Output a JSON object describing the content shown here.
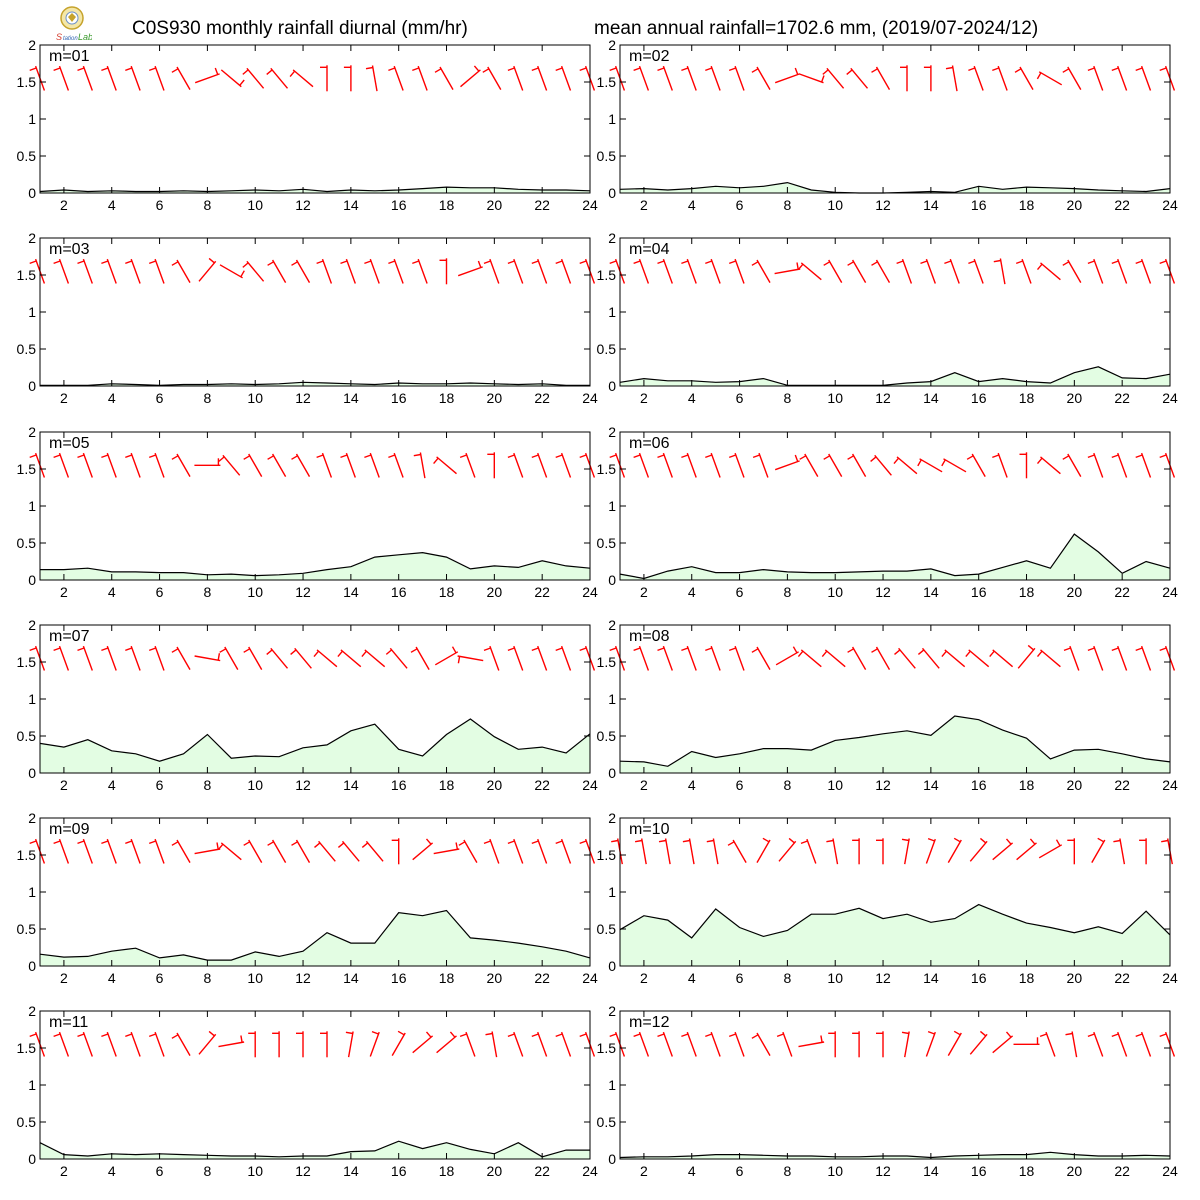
{
  "header": {
    "title_left": "C0S930 monthly rainfall diurnal (mm/hr)",
    "title_right": "mean annual rainfall=1702.6 mm, (2019/07-2024/12)",
    "logo_text": "Lab"
  },
  "colors": {
    "fill": "#e3fde3",
    "line": "#000000",
    "wind": "#ff0000"
  },
  "chart_data": [
    {
      "type": "area",
      "label": "m=01",
      "x": [
        1,
        2,
        3,
        4,
        5,
        6,
        7,
        8,
        9,
        10,
        11,
        12,
        13,
        14,
        15,
        16,
        17,
        18,
        19,
        20,
        21,
        22,
        23,
        24
      ],
      "values": [
        0.02,
        0.04,
        0.02,
        0.03,
        0.02,
        0.02,
        0.03,
        0.02,
        0.03,
        0.04,
        0.03,
        0.05,
        0.02,
        0.04,
        0.03,
        0.04,
        0.06,
        0.08,
        0.07,
        0.07,
        0.05,
        0.04,
        0.04,
        0.03
      ],
      "wind_dir": [
        290,
        290,
        290,
        290,
        290,
        290,
        300,
        200,
        140,
        310,
        310,
        320,
        270,
        270,
        280,
        290,
        290,
        300,
        220,
        300,
        290,
        290,
        290,
        290
      ],
      "ylim": [
        0,
        2
      ],
      "xticks": [
        2,
        4,
        6,
        8,
        10,
        12,
        14,
        16,
        18,
        20,
        22,
        24
      ],
      "yticks": [
        0,
        0.5,
        1,
        1.5,
        2
      ]
    },
    {
      "type": "area",
      "label": "m=02",
      "x": [
        1,
        2,
        3,
        4,
        5,
        6,
        7,
        8,
        9,
        10,
        11,
        12,
        13,
        14,
        15,
        16,
        17,
        18,
        19,
        20,
        21,
        22,
        23,
        24
      ],
      "values": [
        0.05,
        0.06,
        0.04,
        0.06,
        0.09,
        0.07,
        0.09,
        0.14,
        0.04,
        0.01,
        0.0,
        0.0,
        0.01,
        0.02,
        0.01,
        0.09,
        0.05,
        0.08,
        0.07,
        0.06,
        0.04,
        0.03,
        0.02,
        0.06
      ],
      "wind_dir": [
        290,
        290,
        290,
        290,
        290,
        290,
        300,
        200,
        160,
        310,
        310,
        300,
        270,
        270,
        280,
        290,
        290,
        300,
        330,
        300,
        290,
        290,
        290,
        290
      ],
      "ylim": [
        0,
        2
      ],
      "xticks": [
        2,
        4,
        6,
        8,
        10,
        12,
        14,
        16,
        18,
        20,
        22,
        24
      ],
      "yticks": [
        0,
        0.5,
        1,
        1.5,
        2
      ]
    },
    {
      "type": "area",
      "label": "m=03",
      "x": [
        1,
        2,
        3,
        4,
        5,
        6,
        7,
        8,
        9,
        10,
        11,
        12,
        13,
        14,
        15,
        16,
        17,
        18,
        19,
        20,
        21,
        22,
        23,
        24
      ],
      "values": [
        0.01,
        0.01,
        0.01,
        0.03,
        0.02,
        0.01,
        0.02,
        0.02,
        0.03,
        0.02,
        0.03,
        0.05,
        0.04,
        0.03,
        0.02,
        0.04,
        0.03,
        0.03,
        0.04,
        0.03,
        0.02,
        0.03,
        0.01,
        0.01
      ],
      "wind_dir": [
        290,
        290,
        290,
        290,
        290,
        290,
        300,
        230,
        150,
        310,
        300,
        300,
        290,
        290,
        290,
        290,
        290,
        270,
        200,
        290,
        290,
        290,
        290,
        290
      ],
      "ylim": [
        0,
        2
      ],
      "xticks": [
        2,
        4,
        6,
        8,
        10,
        12,
        14,
        16,
        18,
        20,
        22,
        24
      ],
      "yticks": [
        0,
        0.5,
        1,
        1.5,
        2
      ]
    },
    {
      "type": "area",
      "label": "m=04",
      "x": [
        1,
        2,
        3,
        4,
        5,
        6,
        7,
        8,
        9,
        10,
        11,
        12,
        13,
        14,
        15,
        16,
        17,
        18,
        19,
        20,
        21,
        22,
        23,
        24
      ],
      "values": [
        0.05,
        0.1,
        0.07,
        0.07,
        0.05,
        0.06,
        0.1,
        0.01,
        0.01,
        0.01,
        0.01,
        0.01,
        0.04,
        0.06,
        0.18,
        0.06,
        0.1,
        0.06,
        0.04,
        0.18,
        0.26,
        0.11,
        0.1,
        0.16
      ],
      "wind_dir": [
        290,
        290,
        290,
        290,
        290,
        290,
        300,
        190,
        320,
        300,
        300,
        300,
        290,
        290,
        290,
        290,
        280,
        290,
        320,
        300,
        290,
        290,
        290,
        290
      ],
      "ylim": [
        0,
        2
      ],
      "xticks": [
        2,
        4,
        6,
        8,
        10,
        12,
        14,
        16,
        18,
        20,
        22,
        24
      ],
      "yticks": [
        0,
        0.5,
        1,
        1.5,
        2
      ]
    },
    {
      "type": "area",
      "label": "m=05",
      "x": [
        1,
        2,
        3,
        4,
        5,
        6,
        7,
        8,
        9,
        10,
        11,
        12,
        13,
        14,
        15,
        16,
        17,
        18,
        19,
        20,
        21,
        22,
        23,
        24
      ],
      "values": [
        0.14,
        0.14,
        0.16,
        0.11,
        0.11,
        0.1,
        0.1,
        0.07,
        0.08,
        0.06,
        0.07,
        0.09,
        0.14,
        0.18,
        0.31,
        0.34,
        0.37,
        0.31,
        0.15,
        0.19,
        0.17,
        0.26,
        0.19,
        0.16
      ],
      "wind_dir": [
        290,
        290,
        290,
        290,
        290,
        290,
        300,
        180,
        310,
        300,
        300,
        300,
        290,
        290,
        290,
        290,
        280,
        320,
        290,
        270,
        290,
        290,
        290,
        290
      ],
      "ylim": [
        0,
        2
      ],
      "xticks": [
        2,
        4,
        6,
        8,
        10,
        12,
        14,
        16,
        18,
        20,
        22,
        24
      ],
      "yticks": [
        0,
        0.5,
        1,
        1.5,
        2
      ]
    },
    {
      "type": "area",
      "label": "m=06",
      "x": [
        1,
        2,
        3,
        4,
        5,
        6,
        7,
        8,
        9,
        10,
        11,
        12,
        13,
        14,
        15,
        16,
        17,
        18,
        19,
        20,
        21,
        22,
        23,
        24
      ],
      "values": [
        0.08,
        0.02,
        0.12,
        0.18,
        0.1,
        0.1,
        0.14,
        0.11,
        0.1,
        0.1,
        0.11,
        0.12,
        0.12,
        0.15,
        0.06,
        0.08,
        0.17,
        0.26,
        0.16,
        0.62,
        0.38,
        0.09,
        0.25,
        0.16
      ],
      "wind_dir": [
        290,
        290,
        290,
        290,
        290,
        290,
        290,
        200,
        300,
        300,
        300,
        310,
        320,
        330,
        330,
        300,
        290,
        270,
        320,
        300,
        290,
        290,
        290,
        290
      ],
      "ylim": [
        0,
        2
      ],
      "xticks": [
        2,
        4,
        6,
        8,
        10,
        12,
        14,
        16,
        18,
        20,
        22,
        24
      ],
      "yticks": [
        0,
        0.5,
        1,
        1.5,
        2
      ]
    },
    {
      "type": "area",
      "label": "m=07",
      "x": [
        1,
        2,
        3,
        4,
        5,
        6,
        7,
        8,
        9,
        10,
        11,
        12,
        13,
        14,
        15,
        16,
        17,
        18,
        19,
        20,
        21,
        22,
        23,
        24
      ],
      "values": [
        0.4,
        0.35,
        0.45,
        0.3,
        0.26,
        0.16,
        0.26,
        0.52,
        0.2,
        0.23,
        0.22,
        0.34,
        0.38,
        0.57,
        0.66,
        0.32,
        0.23,
        0.52,
        0.73,
        0.49,
        0.32,
        0.35,
        0.27,
        0.53
      ],
      "wind_dir": [
        290,
        290,
        290,
        290,
        290,
        290,
        300,
        170,
        300,
        300,
        310,
        310,
        320,
        320,
        320,
        310,
        300,
        210,
        350,
        290,
        290,
        290,
        290,
        290
      ],
      "ylim": [
        0,
        2
      ],
      "xticks": [
        2,
        4,
        6,
        8,
        10,
        12,
        14,
        16,
        18,
        20,
        22,
        24
      ],
      "yticks": [
        0,
        0.5,
        1,
        1.5,
        2
      ]
    },
    {
      "type": "area",
      "label": "m=08",
      "x": [
        1,
        2,
        3,
        4,
        5,
        6,
        7,
        8,
        9,
        10,
        11,
        12,
        13,
        14,
        15,
        16,
        17,
        18,
        19,
        20,
        21,
        22,
        23,
        24
      ],
      "values": [
        0.16,
        0.15,
        0.09,
        0.29,
        0.21,
        0.26,
        0.33,
        0.33,
        0.31,
        0.44,
        0.48,
        0.53,
        0.57,
        0.51,
        0.77,
        0.72,
        0.58,
        0.47,
        0.19,
        0.31,
        0.32,
        0.26,
        0.19,
        0.15
      ],
      "wind_dir": [
        290,
        290,
        290,
        290,
        290,
        290,
        300,
        210,
        320,
        320,
        300,
        300,
        310,
        310,
        320,
        320,
        320,
        230,
        320,
        290,
        290,
        290,
        290,
        290
      ],
      "ylim": [
        0,
        2
      ],
      "xticks": [
        2,
        4,
        6,
        8,
        10,
        12,
        14,
        16,
        18,
        20,
        22,
        24
      ],
      "yticks": [
        0,
        0.5,
        1,
        1.5,
        2
      ]
    },
    {
      "type": "area",
      "label": "m=09",
      "x": [
        1,
        2,
        3,
        4,
        5,
        6,
        7,
        8,
        9,
        10,
        11,
        12,
        13,
        14,
        15,
        16,
        17,
        18,
        19,
        20,
        21,
        22,
        23,
        24
      ],
      "values": [
        0.16,
        0.12,
        0.13,
        0.2,
        0.24,
        0.11,
        0.15,
        0.08,
        0.08,
        0.19,
        0.13,
        0.2,
        0.45,
        0.31,
        0.31,
        0.72,
        0.68,
        0.75,
        0.38,
        0.35,
        0.31,
        0.26,
        0.2,
        0.11
      ],
      "wind_dir": [
        290,
        290,
        290,
        290,
        290,
        290,
        300,
        190,
        320,
        300,
        300,
        300,
        310,
        310,
        310,
        270,
        220,
        190,
        300,
        290,
        290,
        290,
        290,
        290
      ],
      "ylim": [
        0,
        2
      ],
      "xticks": [
        2,
        4,
        6,
        8,
        10,
        12,
        14,
        16,
        18,
        20,
        22,
        24
      ],
      "yticks": [
        0,
        0.5,
        1,
        1.5,
        2
      ]
    },
    {
      "type": "area",
      "label": "m=10",
      "x": [
        1,
        2,
        3,
        4,
        5,
        6,
        7,
        8,
        9,
        10,
        11,
        12,
        13,
        14,
        15,
        16,
        17,
        18,
        19,
        20,
        21,
        22,
        23,
        24
      ],
      "values": [
        0.49,
        0.68,
        0.62,
        0.38,
        0.77,
        0.52,
        0.4,
        0.48,
        0.7,
        0.7,
        0.78,
        0.64,
        0.7,
        0.59,
        0.64,
        0.83,
        0.7,
        0.58,
        0.52,
        0.45,
        0.53,
        0.44,
        0.74,
        0.42
      ],
      "wind_dir": [
        280,
        280,
        280,
        280,
        280,
        300,
        240,
        230,
        290,
        280,
        270,
        270,
        260,
        250,
        240,
        230,
        220,
        220,
        210,
        270,
        240,
        280,
        270,
        280
      ],
      "ylim": [
        0,
        2
      ],
      "xticks": [
        2,
        4,
        6,
        8,
        10,
        12,
        14,
        16,
        18,
        20,
        22,
        24
      ],
      "yticks": [
        0,
        0.5,
        1,
        1.5,
        2
      ]
    },
    {
      "type": "area",
      "label": "m=11",
      "x": [
        1,
        2,
        3,
        4,
        5,
        6,
        7,
        8,
        9,
        10,
        11,
        12,
        13,
        14,
        15,
        16,
        17,
        18,
        19,
        20,
        21,
        22,
        23,
        24
      ],
      "values": [
        0.22,
        0.06,
        0.04,
        0.07,
        0.06,
        0.07,
        0.06,
        0.05,
        0.04,
        0.04,
        0.03,
        0.04,
        0.04,
        0.1,
        0.11,
        0.24,
        0.14,
        0.22,
        0.13,
        0.07,
        0.22,
        0.03,
        0.12,
        0.12
      ],
      "wind_dir": [
        290,
        290,
        290,
        290,
        290,
        290,
        300,
        230,
        190,
        270,
        270,
        270,
        270,
        260,
        250,
        240,
        220,
        220,
        290,
        280,
        290,
        290,
        290,
        290
      ],
      "ylim": [
        0,
        2
      ],
      "xticks": [
        2,
        4,
        6,
        8,
        10,
        12,
        14,
        16,
        18,
        20,
        22,
        24
      ],
      "yticks": [
        0,
        0.5,
        1,
        1.5,
        2
      ]
    },
    {
      "type": "area",
      "label": "m=12",
      "x": [
        1,
        2,
        3,
        4,
        5,
        6,
        7,
        8,
        9,
        10,
        11,
        12,
        13,
        14,
        15,
        16,
        17,
        18,
        19,
        20,
        21,
        22,
        23,
        24
      ],
      "values": [
        0.02,
        0.03,
        0.03,
        0.04,
        0.06,
        0.06,
        0.05,
        0.04,
        0.04,
        0.03,
        0.03,
        0.04,
        0.04,
        0.02,
        0.04,
        0.05,
        0.06,
        0.06,
        0.09,
        0.06,
        0.04,
        0.04,
        0.05,
        0.04
      ],
      "wind_dir": [
        290,
        290,
        290,
        290,
        290,
        290,
        300,
        290,
        190,
        270,
        270,
        270,
        260,
        250,
        240,
        230,
        220,
        180,
        290,
        280,
        290,
        290,
        290,
        290
      ],
      "ylim": [
        0,
        2
      ],
      "xticks": [
        2,
        4,
        6,
        8,
        10,
        12,
        14,
        16,
        18,
        20,
        22,
        24
      ],
      "yticks": [
        0,
        0.5,
        1,
        1.5,
        2
      ]
    }
  ]
}
